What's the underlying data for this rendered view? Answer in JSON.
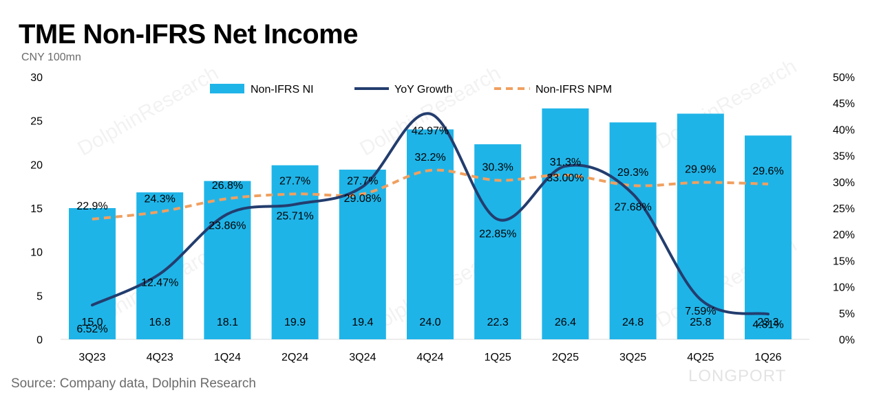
{
  "title": "TME Non-IFRS Net Income",
  "unit": "CNY 100mn",
  "source": "Source: Company data, Dolphin Research",
  "watermark_brand": "LONGPORT",
  "watermark_text": "DolphinResearch",
  "colors": {
    "bar": "#1fb4e8",
    "growth_line": "#233d6e",
    "npm_line": "#f0a060"
  },
  "chart_data": {
    "type": "bar",
    "categories": [
      "3Q23",
      "4Q23",
      "1Q24",
      "2Q24",
      "3Q24",
      "4Q24",
      "1Q25",
      "2Q25",
      "3Q25",
      "4Q25",
      "1Q26"
    ],
    "y_left": {
      "ylim": [
        0,
        30
      ],
      "ticks": [
        "0",
        "5",
        "10",
        "15",
        "20",
        "25",
        "30"
      ]
    },
    "y_right": {
      "ylim": [
        0,
        50
      ],
      "ticks": [
        "0%",
        "5%",
        "10%",
        "15%",
        "20%",
        "25%",
        "30%",
        "35%",
        "40%",
        "45%",
        "50%"
      ]
    },
    "legend_position": "top",
    "grid": false,
    "series": [
      {
        "name": "Non-IFRS NI",
        "type": "bar",
        "axis": "left",
        "values": [
          15.0,
          16.8,
          18.1,
          19.9,
          19.4,
          24.0,
          22.3,
          26.4,
          24.8,
          25.8,
          23.3
        ],
        "labels": [
          "15.0",
          "16.8",
          "18.1",
          "19.9",
          "19.4",
          "24.0",
          "22.3",
          "26.4",
          "24.8",
          "25.8",
          "23.3"
        ]
      },
      {
        "name": "YoY Growth",
        "type": "line",
        "axis": "right",
        "smooth": true,
        "values": [
          6.52,
          12.47,
          23.86,
          25.71,
          29.08,
          42.97,
          22.85,
          33.0,
          27.68,
          7.59,
          4.81
        ],
        "labels": [
          "6.52%",
          "12.47%",
          "23.86%",
          "25.71%",
          "29.08%",
          "42.97%",
          "22.85%",
          "33.00%",
          "27.68%",
          "7.59%",
          "4.81%"
        ]
      },
      {
        "name": "Non-IFRS NPM",
        "type": "line",
        "axis": "right",
        "dashed": true,
        "values": [
          22.9,
          24.3,
          26.8,
          27.7,
          27.7,
          32.2,
          30.3,
          31.3,
          29.3,
          29.9,
          29.6
        ],
        "labels": [
          "22.9%",
          "24.3%",
          "26.8%",
          "27.7%",
          "27.7%",
          "32.2%",
          "30.3%",
          "31.3%",
          "29.3%",
          "29.9%",
          "29.6%"
        ]
      }
    ]
  }
}
